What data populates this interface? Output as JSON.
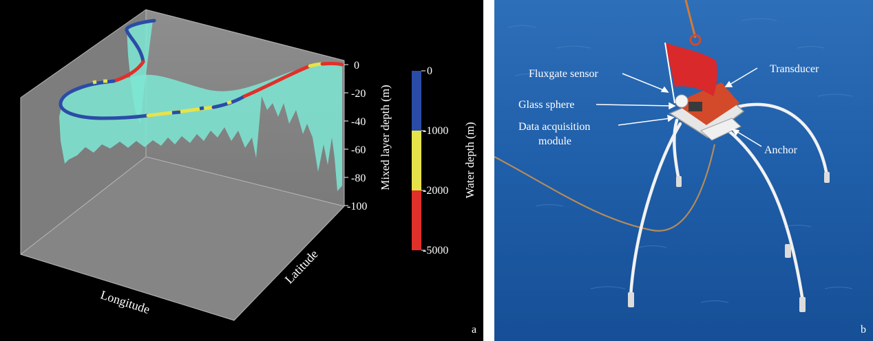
{
  "panel_a": {
    "panel_label": "a",
    "axes": {
      "x_label": "Longitude",
      "y_label": "Latitude",
      "z_label": "Mixed layer depth (m)",
      "z_ticks": [
        "0",
        "-20",
        "-40",
        "-60",
        "-80",
        "-100"
      ]
    },
    "colorbar": {
      "label": "Water depth (m)",
      "ticks": [
        "0",
        "-1000",
        "-2000",
        "-5000"
      ],
      "bands": [
        {
          "range": "0 to -1000",
          "color": "#2b4ca6"
        },
        {
          "range": "-1000 to -2000",
          "color": "#e6e34a"
        },
        {
          "range": "-2000 to -5000",
          "color": "#e0302a"
        }
      ]
    },
    "colors": {
      "background": "#000000",
      "box_face": "#808080",
      "mld_fill": "#7ee8d4",
      "track_blue": "#2b4ca6",
      "track_yellow": "#e6e34a",
      "track_red": "#e0302a"
    }
  },
  "panel_b": {
    "panel_label": "b",
    "callouts": {
      "fluxgate": "Fluxgate sensor",
      "glass": "Glass sphere",
      "daq_line1": "Data acquisition",
      "daq_line2": "module",
      "transducer": "Transducer",
      "anchor": "Anchor"
    },
    "colors": {
      "sea": "#1e5fa8",
      "flag": "#d9292b",
      "frame": "#e8e8e8"
    }
  }
}
